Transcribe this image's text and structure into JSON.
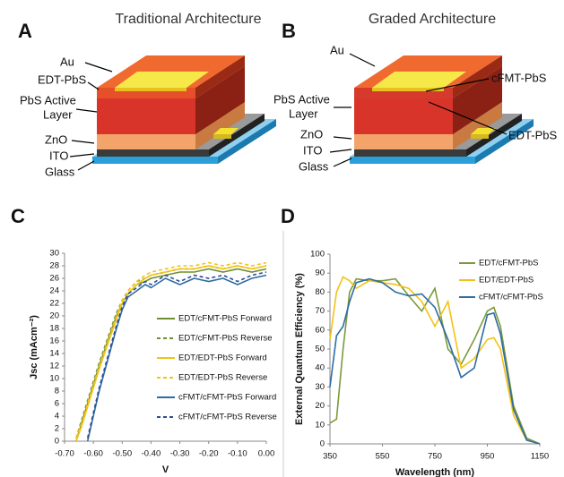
{
  "diagrams": [
    {
      "letter": "A",
      "title": "Traditional Architecture",
      "labels": [
        "Au",
        "EDT-PbS",
        [
          "PbS Active",
          "Layer"
        ],
        "ZnO",
        "ITO",
        "Glass"
      ]
    },
    {
      "letter": "B",
      "title": "Graded Architecture",
      "labels": [
        "Au",
        "cFMT-PbS",
        [
          "PbS Active",
          "Layer"
        ],
        "EDT-PbS",
        "ZnO",
        "ITO",
        "Glass"
      ]
    }
  ],
  "chart_data": [
    {
      "type": "line",
      "letter": "C",
      "xlabel": "V",
      "ylabel": "Jsc (mAcm⁻²)",
      "x": [
        -0.66,
        -0.64,
        -0.62,
        -0.6,
        -0.58,
        -0.55,
        -0.52,
        -0.5,
        -0.48,
        -0.45,
        -0.42,
        -0.4,
        -0.35,
        -0.3,
        -0.25,
        -0.2,
        -0.15,
        -0.1,
        -0.05,
        0
      ],
      "xlim": [
        -0.7,
        0
      ],
      "ylim": [
        0,
        30
      ],
      "xticks": [
        {
          "value": -0.7,
          "label": "-0.70"
        },
        {
          "value": -0.6,
          "label": "-0.60"
        },
        {
          "value": -0.5,
          "label": "-0.50"
        },
        {
          "value": -0.4,
          "label": "-0.40"
        },
        {
          "value": -0.3,
          "label": "-0.30"
        },
        {
          "value": -0.2,
          "label": "-0.20"
        },
        {
          "value": -0.1,
          "label": "-0.10"
        },
        {
          "value": 0,
          "label": "0.00"
        }
      ],
      "yticks": [
        0,
        2,
        4,
        6,
        8,
        10,
        12,
        14,
        16,
        18,
        20,
        22,
        24,
        26,
        28,
        30
      ],
      "series": [
        {
          "name": "EDT/cFMT-PbS Forward",
          "color": "#6f8f32",
          "style": "solid",
          "values": [
            0,
            3,
            6,
            9,
            12,
            16,
            20,
            22,
            23.5,
            25,
            25.5,
            26,
            26.5,
            27,
            27,
            27.5,
            27,
            27.5,
            27,
            27.5
          ]
        },
        {
          "name": "EDT/cFMT-PbS Reverse",
          "color": "#6f8f32",
          "style": "dashed",
          "values": [
            0.5,
            3.5,
            6.5,
            9.5,
            12.5,
            16.5,
            20.5,
            22.5,
            24,
            25.5,
            26,
            26.5,
            27,
            27.5,
            27.5,
            28,
            27.5,
            28,
            27.5,
            28
          ]
        },
        {
          "name": "EDT/EDT-PbS Forward",
          "color": "#f2c314",
          "style": "solid",
          "values": [
            0,
            2.5,
            5.5,
            8.5,
            11.5,
            15.5,
            19.5,
            22,
            23.5,
            25,
            26,
            26.5,
            27,
            27.5,
            27.5,
            28,
            27.5,
            28,
            27.5,
            28
          ]
        },
        {
          "name": "EDT/EDT-PbS Reverse",
          "color": "#f2c314",
          "style": "dashed",
          "values": [
            0.5,
            3,
            6,
            9,
            12,
            16,
            20,
            22.5,
            24,
            25.5,
            26.5,
            27,
            27.5,
            28,
            28,
            28.5,
            28,
            28.5,
            28,
            28.5
          ]
        },
        {
          "name": "cFMT/cFMT-PbS Forward",
          "color": "#2e6ca4",
          "style": "solid",
          "values": [
            null,
            null,
            0,
            4,
            8,
            13,
            18,
            21,
            23,
            24,
            25,
            24.5,
            26,
            25,
            26,
            25.5,
            26,
            25,
            26,
            26.5
          ]
        },
        {
          "name": "cFMT/cFMT-PbS Reverse",
          "color": "#2e4c94",
          "style": "dashed",
          "values": [
            null,
            null,
            0.5,
            4.5,
            8.5,
            13.5,
            18.5,
            21.5,
            23.5,
            24.5,
            25.5,
            25,
            26.5,
            25.5,
            26.5,
            26,
            26.5,
            25.5,
            26.5,
            27
          ]
        }
      ]
    },
    {
      "type": "line",
      "letter": "D",
      "xlabel": "Wavelength (nm)",
      "ylabel": "External Quantum Efficiency (%)",
      "x": [
        350,
        375,
        400,
        425,
        450,
        500,
        550,
        600,
        650,
        700,
        750,
        800,
        850,
        900,
        950,
        975,
        1000,
        1050,
        1100,
        1150
      ],
      "xlim": [
        350,
        1150
      ],
      "ylim": [
        0,
        100
      ],
      "xticks": [
        350,
        550,
        750,
        950,
        1150
      ],
      "yticks": [
        0,
        10,
        20,
        30,
        40,
        50,
        60,
        70,
        80,
        90,
        100
      ],
      "series": [
        {
          "name": "EDT/cFMT-PbS",
          "color": "#7a9a3a",
          "style": "solid",
          "values": [
            11,
            13,
            50,
            80,
            87,
            86,
            86,
            87,
            78,
            70,
            82,
            50,
            42,
            55,
            70,
            72,
            62,
            20,
            3,
            0
          ]
        },
        {
          "name": "EDT/EDT-PbS",
          "color": "#f2c314",
          "style": "solid",
          "values": [
            55,
            80,
            88,
            86,
            82,
            86,
            85,
            84,
            82,
            75,
            62,
            75,
            40,
            45,
            55,
            56,
            50,
            15,
            2,
            0
          ]
        },
        {
          "name": "cFMT/cFMT-PbS",
          "color": "#2e6ca4",
          "style": "solid",
          "values": [
            30,
            57,
            62,
            75,
            85,
            87,
            85,
            80,
            78,
            79,
            72,
            55,
            35,
            40,
            68,
            69,
            58,
            18,
            2,
            0
          ]
        }
      ]
    }
  ]
}
